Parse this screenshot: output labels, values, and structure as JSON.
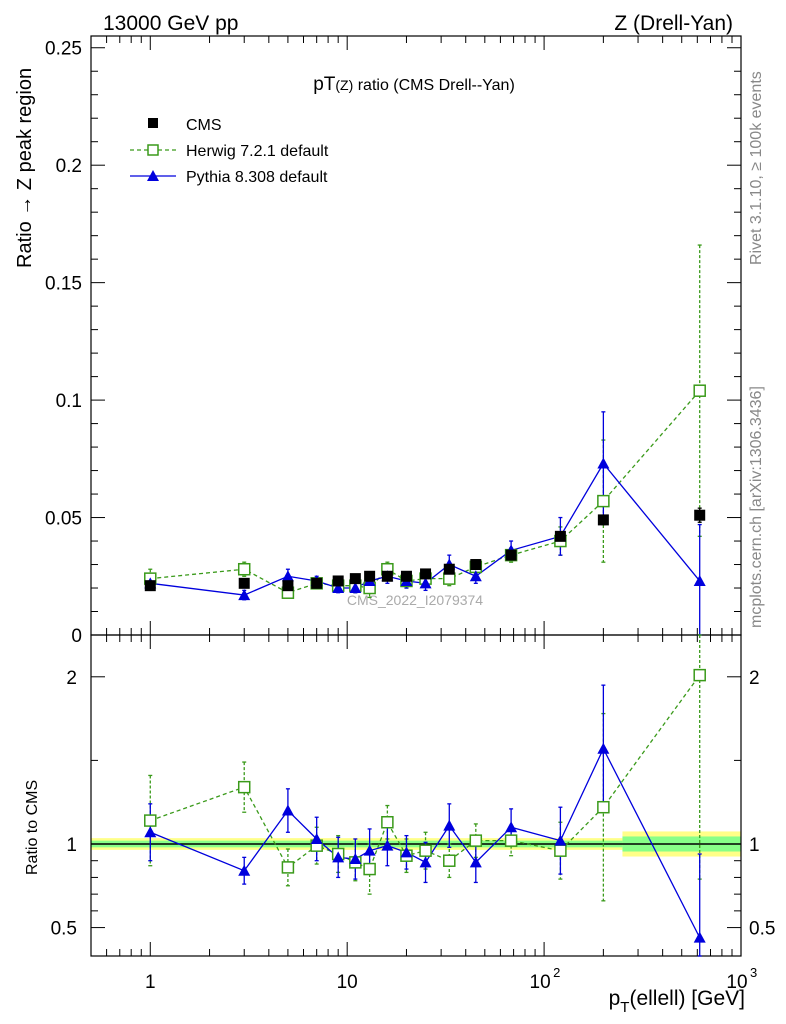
{
  "header": {
    "left": "13000 GeV pp",
    "right": "Z (Drell-Yan)"
  },
  "side_text": {
    "rivet": "Rivet 3.1.10, ≥ 100k events",
    "mcplots": "mcplots.cern.ch [arXiv:1306.3436]"
  },
  "watermark": "CMS_2022_I2079374",
  "colors": {
    "cms": "#000000",
    "herwig": "#3a9a1a",
    "pythia": "#0000dd",
    "band_outer": "#ffff88",
    "band_inner": "#88ff88"
  },
  "chart_data": [
    {
      "type": "scatter",
      "title_main": "pT",
      "title_sub": "(Z)",
      "title_rest": " ratio (CMS Drell--Yan)",
      "ylabel": "Ratio → Z peak region",
      "xscale": "log",
      "xlim": [
        0.5,
        1000
      ],
      "ylim": [
        0,
        0.255
      ],
      "yticks": [
        0,
        0.05,
        0.1,
        0.15,
        0.2,
        0.25
      ],
      "ytick_labels": [
        "0",
        "0.05",
        "0.1",
        "0.15",
        "0.2",
        "0.25"
      ],
      "legend_position": "top-left",
      "series": [
        {
          "name": "CMS",
          "style": "marker-square-filled",
          "x": [
            1,
            3,
            5,
            7,
            9,
            11,
            13,
            16,
            20,
            25,
            33,
            45,
            68,
            121,
            200,
            617
          ],
          "y": [
            0.021,
            0.022,
            0.021,
            0.022,
            0.023,
            0.024,
            0.025,
            0.025,
            0.025,
            0.026,
            0.028,
            0.03,
            0.034,
            0.042,
            0.049,
            0.051
          ],
          "err": [
            0.001,
            0.001,
            0.001,
            0.001,
            0.001,
            0.001,
            0.001,
            0.001,
            0.001,
            0.001,
            0.001,
            0.001,
            0.001,
            0.002,
            0.002,
            0.003
          ]
        },
        {
          "name": "Herwig 7.2.1 default",
          "style": "dashed-open-square",
          "x": [
            1,
            3,
            5,
            7,
            9,
            11,
            13,
            16,
            20,
            25,
            33,
            45,
            68,
            121,
            200,
            617
          ],
          "y": [
            0.024,
            0.028,
            0.018,
            0.022,
            0.021,
            0.021,
            0.02,
            0.028,
            0.023,
            0.024,
            0.024,
            0.029,
            0.034,
            0.04,
            0.057,
            0.104
          ],
          "err": [
            0.004,
            0.003,
            0.002,
            0.002,
            0.002,
            0.003,
            0.004,
            0.003,
            0.003,
            0.003,
            0.003,
            0.003,
            0.003,
            0.006,
            0.026,
            0.062
          ]
        },
        {
          "name": "Pythia 8.308 default",
          "style": "solid-filled-triangle",
          "x": [
            1,
            3,
            5,
            7,
            9,
            11,
            13,
            16,
            20,
            25,
            33,
            45,
            68,
            121,
            200,
            617
          ],
          "y": [
            0.022,
            0.017,
            0.025,
            0.023,
            0.02,
            0.02,
            0.023,
            0.025,
            0.023,
            0.022,
            0.03,
            0.025,
            0.036,
            0.042,
            0.073,
            0.023
          ],
          "err": [
            0.003,
            0.002,
            0.003,
            0.002,
            0.002,
            0.002,
            0.003,
            0.003,
            0.003,
            0.003,
            0.004,
            0.003,
            0.004,
            0.008,
            0.022,
            0.024
          ]
        }
      ]
    },
    {
      "type": "scatter",
      "ylabel": "Ratio to CMS",
      "xlabel_main": "p",
      "xlabel_sub": "T",
      "xlabel_rest": "(ellell) [GeV]",
      "xscale": "log",
      "xlim": [
        0.5,
        1000
      ],
      "ylim": [
        0.33,
        2.25
      ],
      "yticks": [
        0.5,
        1,
        2
      ],
      "ytick_labels": [
        "0.5",
        "1",
        "2"
      ],
      "xtick_base": "10",
      "xtick_labels": [
        "1",
        "10",
        "2",
        "3"
      ],
      "band": {
        "x_edges": [
          0.5,
          250,
          1000
        ],
        "outer_half_width": [
          0.035,
          0.075
        ],
        "inner_half_width": [
          0.02,
          0.045
        ]
      },
      "series": [
        {
          "name": "Herwig 7.2.1 default",
          "x": [
            1,
            3,
            5,
            7,
            9,
            11,
            13,
            16,
            20,
            25,
            33,
            45,
            68,
            121,
            200,
            617
          ],
          "y": [
            1.14,
            1.34,
            0.86,
            0.99,
            0.94,
            0.89,
            0.85,
            1.13,
            0.93,
            0.96,
            0.9,
            1.02,
            1.02,
            0.96,
            1.22,
            2.01
          ],
          "err": [
            0.27,
            0.15,
            0.11,
            0.11,
            0.11,
            0.11,
            0.15,
            0.1,
            0.1,
            0.11,
            0.1,
            0.1,
            0.09,
            0.17,
            0.56,
            1.22
          ]
        },
        {
          "name": "Pythia 8.308 default",
          "x": [
            1,
            3,
            5,
            7,
            9,
            11,
            13,
            16,
            20,
            25,
            33,
            45,
            68,
            121,
            200,
            617
          ],
          "y": [
            1.07,
            0.84,
            1.2,
            1.03,
            0.92,
            0.91,
            0.96,
            0.99,
            0.95,
            0.89,
            1.11,
            0.89,
            1.1,
            1.02,
            1.57,
            0.44
          ],
          "err": [
            0.17,
            0.08,
            0.13,
            0.13,
            0.12,
            0.12,
            0.13,
            0.12,
            0.1,
            0.12,
            0.13,
            0.12,
            0.11,
            0.2,
            0.38,
            0.5
          ]
        }
      ]
    }
  ]
}
